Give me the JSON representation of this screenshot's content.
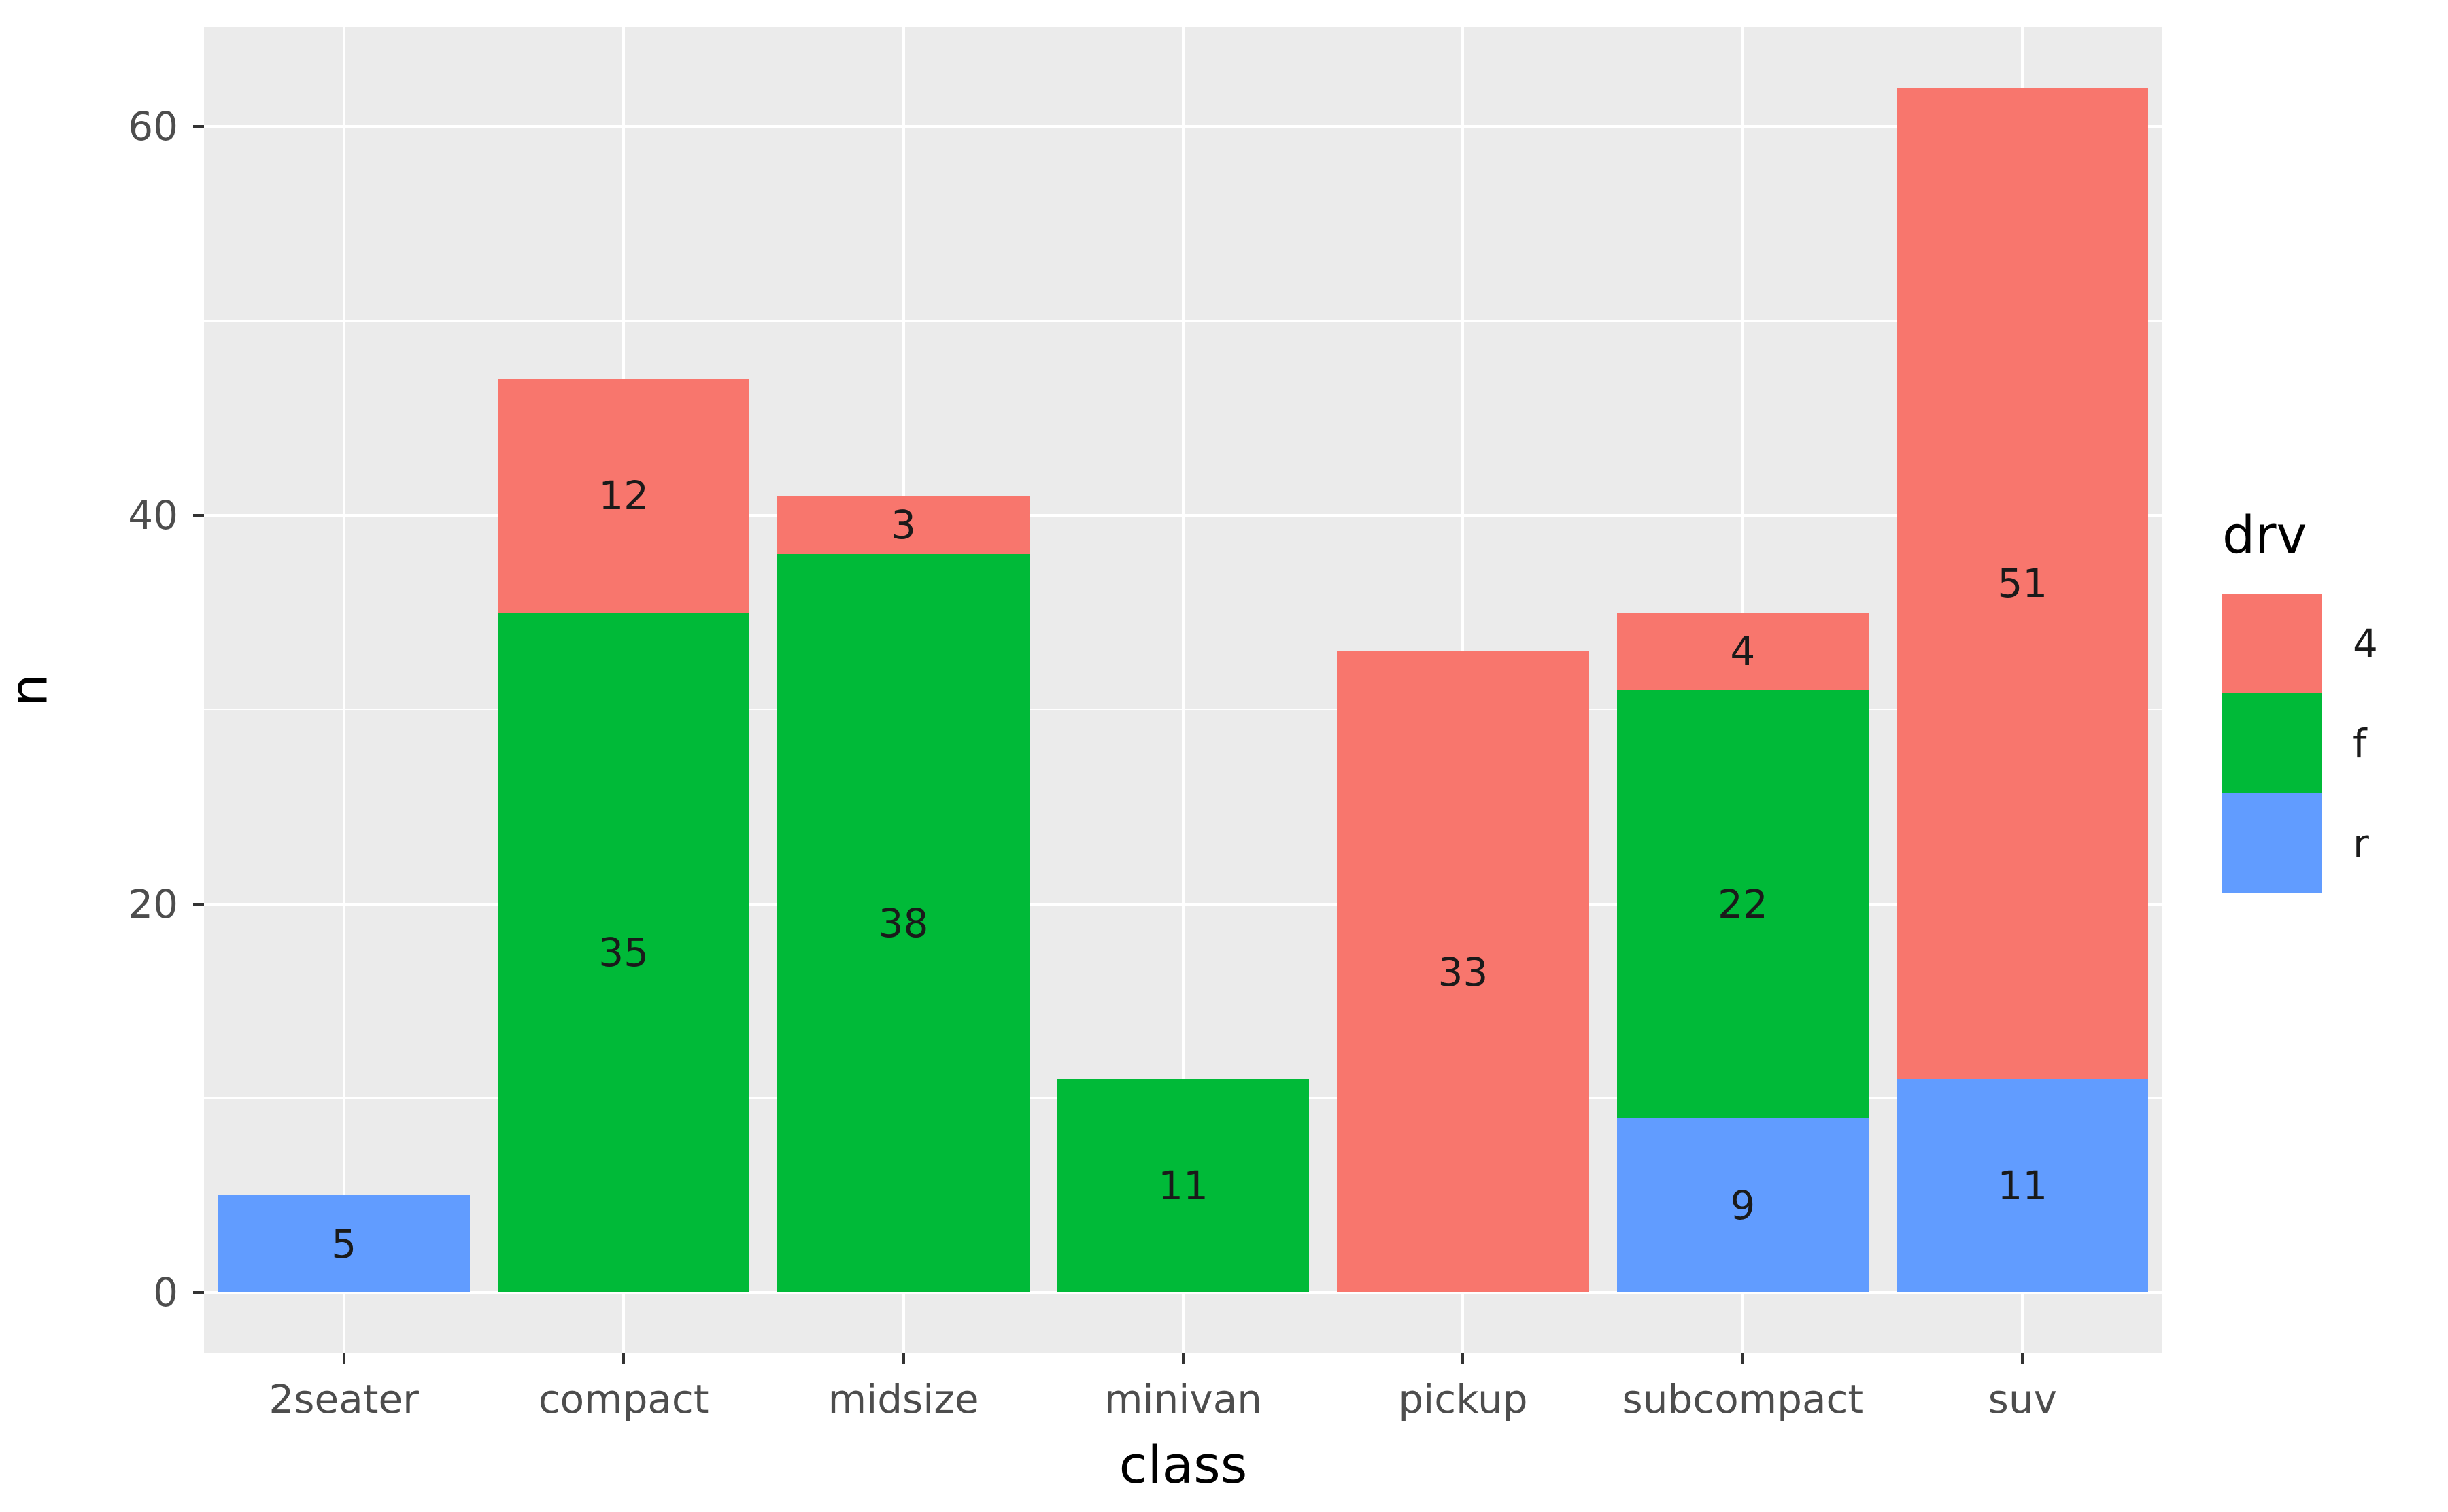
{
  "chart_data": {
    "type": "bar",
    "stacked": true,
    "xlabel": "class",
    "ylabel": "n",
    "categories": [
      "2seater",
      "compact",
      "midsize",
      "minivan",
      "pickup",
      "subcompact",
      "suv"
    ],
    "series": [
      {
        "name": "4",
        "color": "#F8766D",
        "values": [
          0,
          12,
          3,
          0,
          33,
          4,
          51
        ]
      },
      {
        "name": "f",
        "color": "#00BA38",
        "values": [
          0,
          35,
          38,
          11,
          0,
          22,
          0
        ]
      },
      {
        "name": "r",
        "color": "#619CFF",
        "values": [
          5,
          0,
          0,
          0,
          0,
          9,
          11
        ]
      }
    ],
    "stack_order_bottom_to_top": [
      "r",
      "f",
      "4"
    ],
    "totals": [
      5,
      47,
      41,
      11,
      33,
      35,
      62
    ],
    "y_ticks": [
      0,
      20,
      40,
      60
    ],
    "y_minor_ticks": [
      10,
      30,
      50
    ],
    "ylim": [
      -3.1,
      65.1
    ],
    "bar_width_fraction": 0.9,
    "bar_labels_shown": true,
    "legend": {
      "title": "drv",
      "position": "right",
      "entries": [
        {
          "label": "4",
          "color": "#F8766D"
        },
        {
          "label": "f",
          "color": "#00BA38"
        },
        {
          "label": "r",
          "color": "#619CFF"
        }
      ]
    },
    "grid": "on"
  },
  "style": {
    "panel_background": "#EBEBEB",
    "grid_color": "#FFFFFF",
    "axis_text_color": "#4D4D4D",
    "title_text_color": "#000000",
    "bar_label_color": "#1a1a1a",
    "tick_mark_color": "#333333"
  }
}
